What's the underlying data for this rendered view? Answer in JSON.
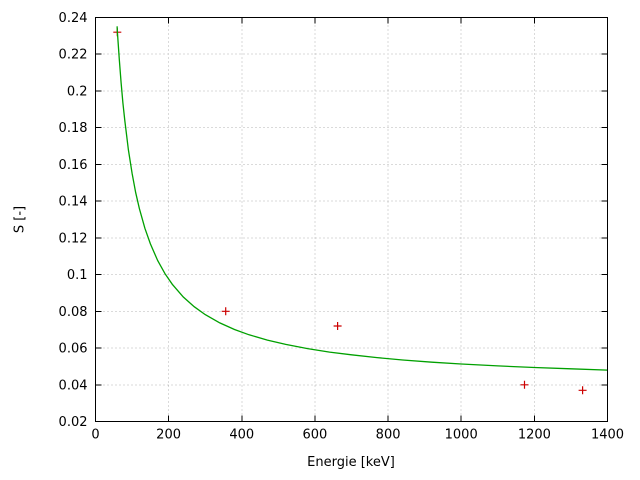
{
  "chart_data": {
    "type": "scatter",
    "title": "",
    "xlabel": "Energie [keV]",
    "ylabel": "S [-]",
    "xlim": [
      0,
      1400
    ],
    "ylim": [
      0.02,
      0.24
    ],
    "grid": true,
    "legend": "none",
    "xticks": {
      "values": [
        0,
        200,
        400,
        600,
        800,
        1000,
        1200,
        1400
      ],
      "labels": [
        "0",
        "200",
        "400",
        "600",
        "800",
        "1000",
        "1200",
        "1400"
      ]
    },
    "yticks": {
      "values": [
        0.02,
        0.04,
        0.06,
        0.08,
        0.1,
        0.12,
        0.14,
        0.16,
        0.18,
        0.2,
        0.22,
        0.24
      ],
      "labels": [
        "0.02",
        "0.04",
        "0.06",
        "0.08",
        "0.1",
        "0.12",
        "0.14",
        "0.16",
        "0.18",
        "0.2",
        "0.22",
        "0.24"
      ]
    },
    "colors": {
      "background": "#ffffff",
      "border": "#000000",
      "grid": "#b4b4b4",
      "text": "#000000"
    },
    "series": [
      {
        "name": "measured-points",
        "type": "scatter",
        "marker": "plus",
        "color": "#cc0000",
        "x": [
          59.5,
          356,
          662,
          1173,
          1332
        ],
        "y": [
          0.232,
          0.08,
          0.072,
          0.04,
          0.037
        ]
      },
      {
        "name": "fit-curve",
        "type": "line",
        "color": "#00a000",
        "x": [
          59,
          60,
          65,
          70,
          75,
          80,
          90,
          100,
          110,
          120,
          135,
          150,
          170,
          190,
          210,
          240,
          270,
          300,
          340,
          380,
          420,
          470,
          520,
          580,
          640,
          700,
          770,
          840,
          920,
          1000,
          1100,
          1200,
          1300,
          1400
        ],
        "y": [
          0.2352,
          0.232,
          0.2172,
          0.2045,
          0.1935,
          0.1839,
          0.1679,
          0.1551,
          0.1446,
          0.1359,
          0.1252,
          0.1167,
          0.1076,
          0.1005,
          0.0947,
          0.0878,
          0.0825,
          0.0782,
          0.0737,
          0.0701,
          0.0672,
          0.0643,
          0.062,
          0.0597,
          0.0578,
          0.0563,
          0.0548,
          0.0535,
          0.0523,
          0.0513,
          0.0503,
          0.0494,
          0.0487,
          0.048
        ]
      }
    ]
  }
}
